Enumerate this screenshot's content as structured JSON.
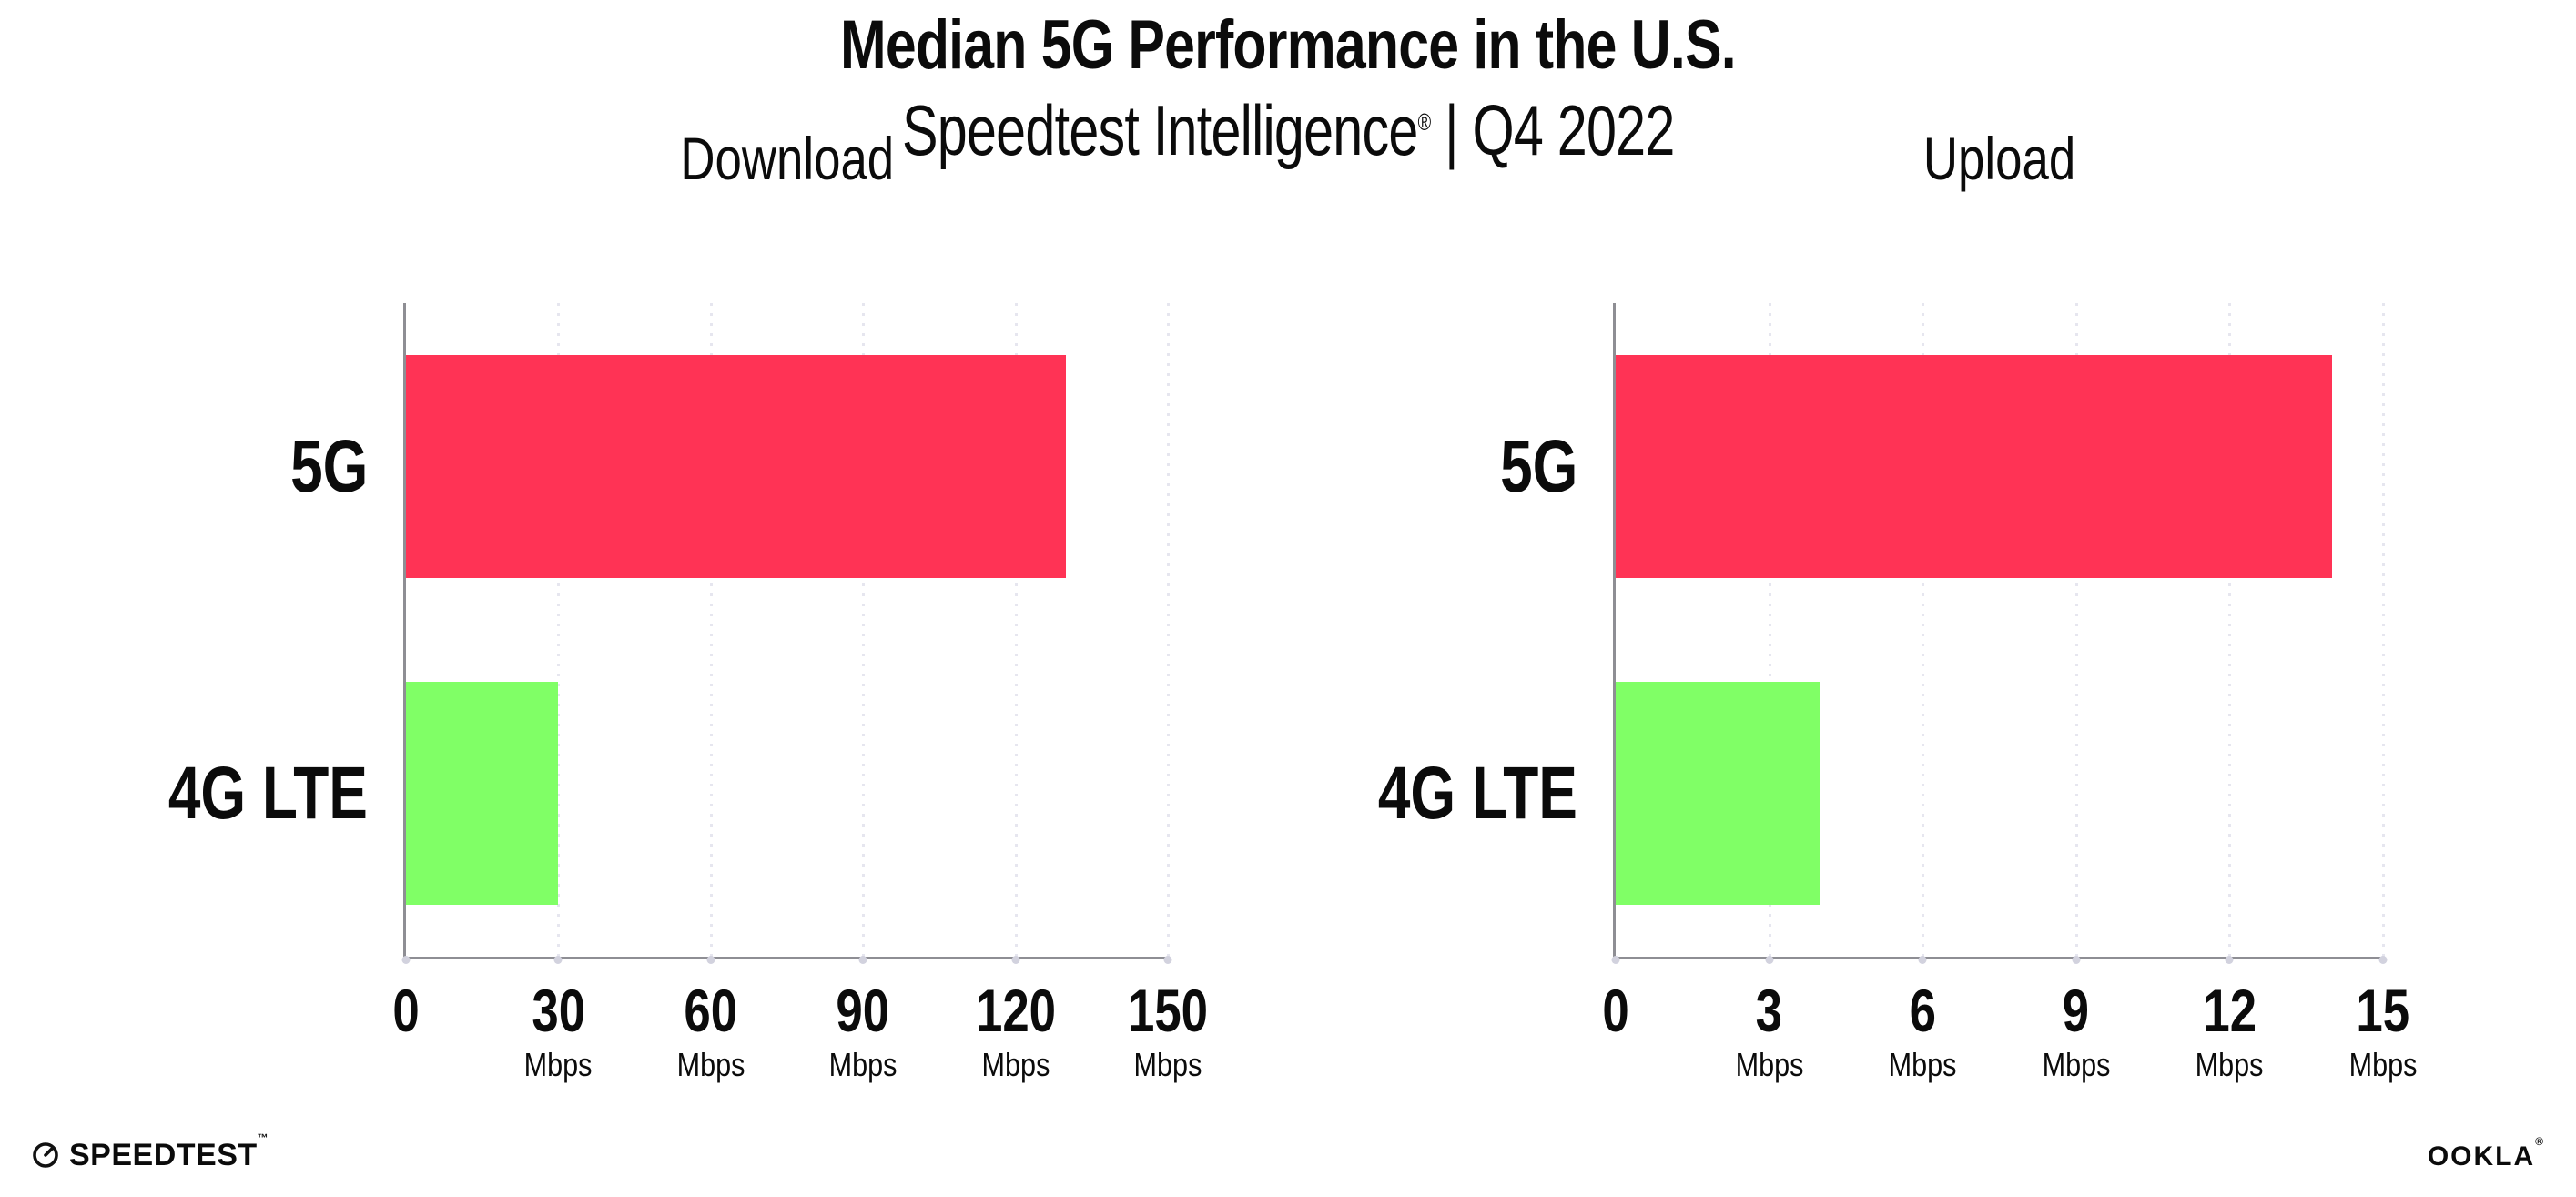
{
  "page": {
    "title": "Median 5G Performance in the U.S.",
    "subtitle_brand": "Speedtest Intelligence",
    "subtitle_reg": "®",
    "subtitle_rest": " | Q4 2022"
  },
  "colors": {
    "bar_5g": "#FF3355",
    "bar_4g_lte": "#80FF66",
    "axis": "#8E8E94",
    "grid": "#E6E6EF",
    "tick_dot": "#D2D2DE",
    "text": "#0B0B0B",
    "background": "#FFFFFF"
  },
  "chart_data": [
    {
      "type": "bar",
      "orientation": "horizontal",
      "title": "Download",
      "categories": [
        "5G",
        "4G LTE"
      ],
      "values": [
        130,
        30
      ],
      "unit": "Mbps",
      "xlim": [
        0,
        150
      ],
      "xticks": [
        0,
        30,
        60,
        90,
        120,
        150
      ],
      "grid": "vertical-dotted",
      "legend": "none",
      "bar_colors": [
        "#FF3355",
        "#80FF66"
      ]
    },
    {
      "type": "bar",
      "orientation": "horizontal",
      "title": "Upload",
      "categories": [
        "5G",
        "4G LTE"
      ],
      "values": [
        14,
        4
      ],
      "unit": "Mbps",
      "xlim": [
        0,
        15
      ],
      "xticks": [
        0,
        3,
        6,
        9,
        12,
        15
      ],
      "grid": "vertical-dotted",
      "legend": "none",
      "bar_colors": [
        "#FF3355",
        "#80FF66"
      ]
    }
  ],
  "footer": {
    "speedtest_text": "SPEEDTEST",
    "speedtest_mark": "™",
    "ookla_text": "OOKLA",
    "ookla_mark": "®"
  }
}
